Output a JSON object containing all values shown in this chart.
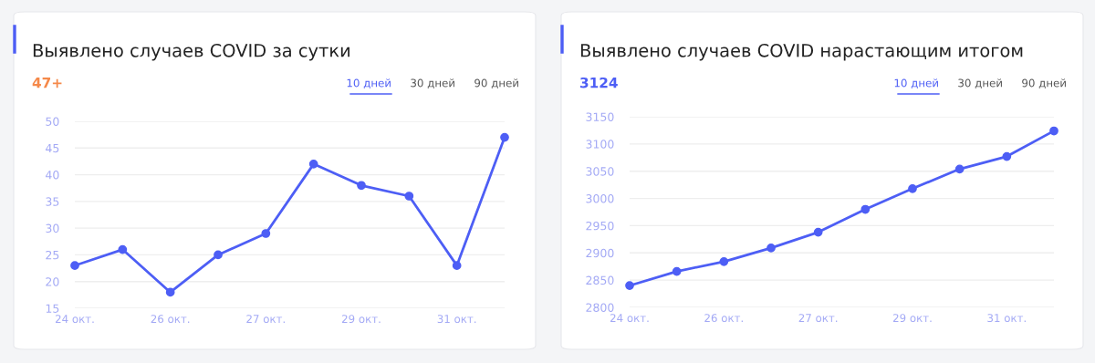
{
  "chart_data": [
    {
      "type": "line",
      "title": "Выявлено случаев COVID за сутки",
      "annotations": [
        "47+",
        "10 дней",
        "30 дней",
        "90 дней"
      ],
      "categories": [
        "24 окт.",
        null,
        "26 окт.",
        null,
        "27 окт.",
        null,
        "29 окт.",
        null,
        "31 окт.",
        null
      ],
      "series": [
        {
          "color": "#4d5ef5",
          "values": [
            23,
            26,
            18,
            25,
            29,
            42,
            38,
            36,
            23,
            47
          ]
        }
      ],
      "ylim": [
        15,
        50
      ],
      "yticks": [
        15,
        20,
        25,
        30,
        35,
        40,
        45,
        50
      ],
      "grid": "y",
      "marker": "circle"
    },
    {
      "type": "line",
      "title": "Выявлено случаев COVID нарастающим итогом",
      "annotations": [
        "3124",
        "10 дней",
        "30 дней",
        "90 дней"
      ],
      "categories": [
        "24 окт.",
        null,
        "26 окт.",
        null,
        "27 окт.",
        null,
        "29 окт.",
        null,
        "31 окт.",
        null
      ],
      "series": [
        {
          "color": "#4d5ef5",
          "values": [
            2840,
            2866,
            2884,
            2909,
            2938,
            2980,
            3018,
            3054,
            3077,
            3124
          ]
        }
      ],
      "ylim": [
        2800,
        3150
      ],
      "yticks": [
        2800,
        2850,
        2900,
        2950,
        3000,
        3050,
        3100,
        3150
      ],
      "grid": "y",
      "marker": "circle"
    }
  ]
}
